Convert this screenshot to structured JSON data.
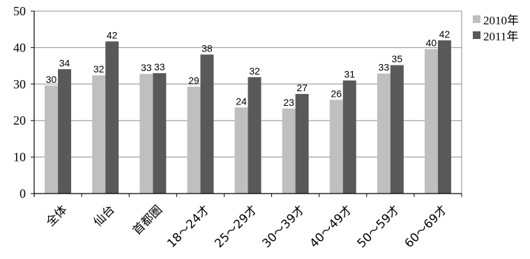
{
  "chart_data": {
    "type": "bar",
    "title": "",
    "xlabel": "",
    "ylabel": "",
    "ylim": [
      0,
      50
    ],
    "yticks": [
      0,
      10,
      20,
      30,
      40,
      50
    ],
    "grid": true,
    "legend_position": "right-top",
    "categories": [
      "全体",
      "仙台",
      "首都圏",
      "18～24才",
      "25～29才",
      "30～39才",
      "40～49才",
      "50～59才",
      "60～69才"
    ],
    "series": [
      {
        "name": "2010年",
        "color": "#bfbfbf",
        "values": [
          30,
          32,
          33,
          29,
          24,
          23,
          26,
          33,
          40
        ],
        "heights": [
          29.6,
          32.4,
          32.8,
          29.3,
          23.6,
          23.3,
          25.7,
          32.9,
          39.6
        ]
      },
      {
        "name": "2011年",
        "color": "#595959",
        "values": [
          34,
          42,
          33,
          38,
          32,
          27,
          31,
          35,
          42
        ],
        "heights": [
          34.1,
          41.7,
          33.0,
          38.1,
          31.9,
          27.3,
          31.0,
          35.2,
          42.0
        ]
      }
    ]
  }
}
